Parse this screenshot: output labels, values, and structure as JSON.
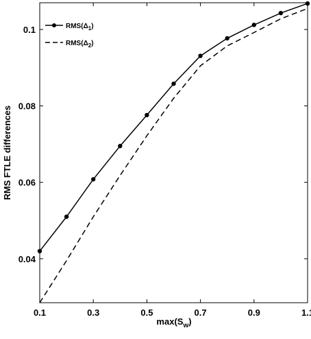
{
  "chart_data": {
    "type": "line",
    "xlabel": "max(S_w)",
    "ylabel": "RMS FTLE differences",
    "xlim": [
      0.1,
      1.1
    ],
    "ylim": [
      0.0285,
      0.107
    ],
    "x_ticks": [
      0.1,
      0.3,
      0.5,
      0.7,
      0.9,
      1.1
    ],
    "x_tick_labels": [
      "0.1",
      "0.3",
      "0.5",
      "0.7",
      "0.9",
      "1.1"
    ],
    "y_ticks": [
      0.04,
      0.06,
      0.08,
      0.1
    ],
    "y_tick_labels": [
      "0.04",
      "0.06",
      "0.08",
      "0.1"
    ],
    "grid": false,
    "legend_position": "top-left",
    "series": [
      {
        "name": "RMS(Δ1)",
        "style": "solid-with-markers",
        "x": [
          0.1,
          0.2,
          0.3,
          0.4,
          0.5,
          0.6,
          0.7,
          0.8,
          0.9,
          1.0,
          1.1
        ],
        "y": [
          0.042,
          0.051,
          0.0608,
          0.0695,
          0.0776,
          0.0858,
          0.0931,
          0.0977,
          0.1012,
          0.1043,
          0.1068
        ]
      },
      {
        "name": "RMS(Δ2)",
        "style": "dashed",
        "x": [
          0.1,
          0.2,
          0.3,
          0.4,
          0.5,
          0.6,
          0.7,
          0.8,
          0.9,
          1.0,
          1.1
        ],
        "y": [
          0.0285,
          0.0395,
          0.051,
          0.0618,
          0.0722,
          0.082,
          0.0905,
          0.0957,
          0.0992,
          0.1028,
          0.1055
        ]
      }
    ],
    "legend": [
      {
        "base": "RMS(",
        "symbol": "Δ",
        "sub": "1",
        "close": ")"
      },
      {
        "base": "RMS(",
        "symbol": "Δ",
        "sub": "2",
        "close": ")"
      }
    ],
    "xlabel_parts": {
      "base": "max(S",
      "sub": "w",
      "close": ")"
    }
  }
}
